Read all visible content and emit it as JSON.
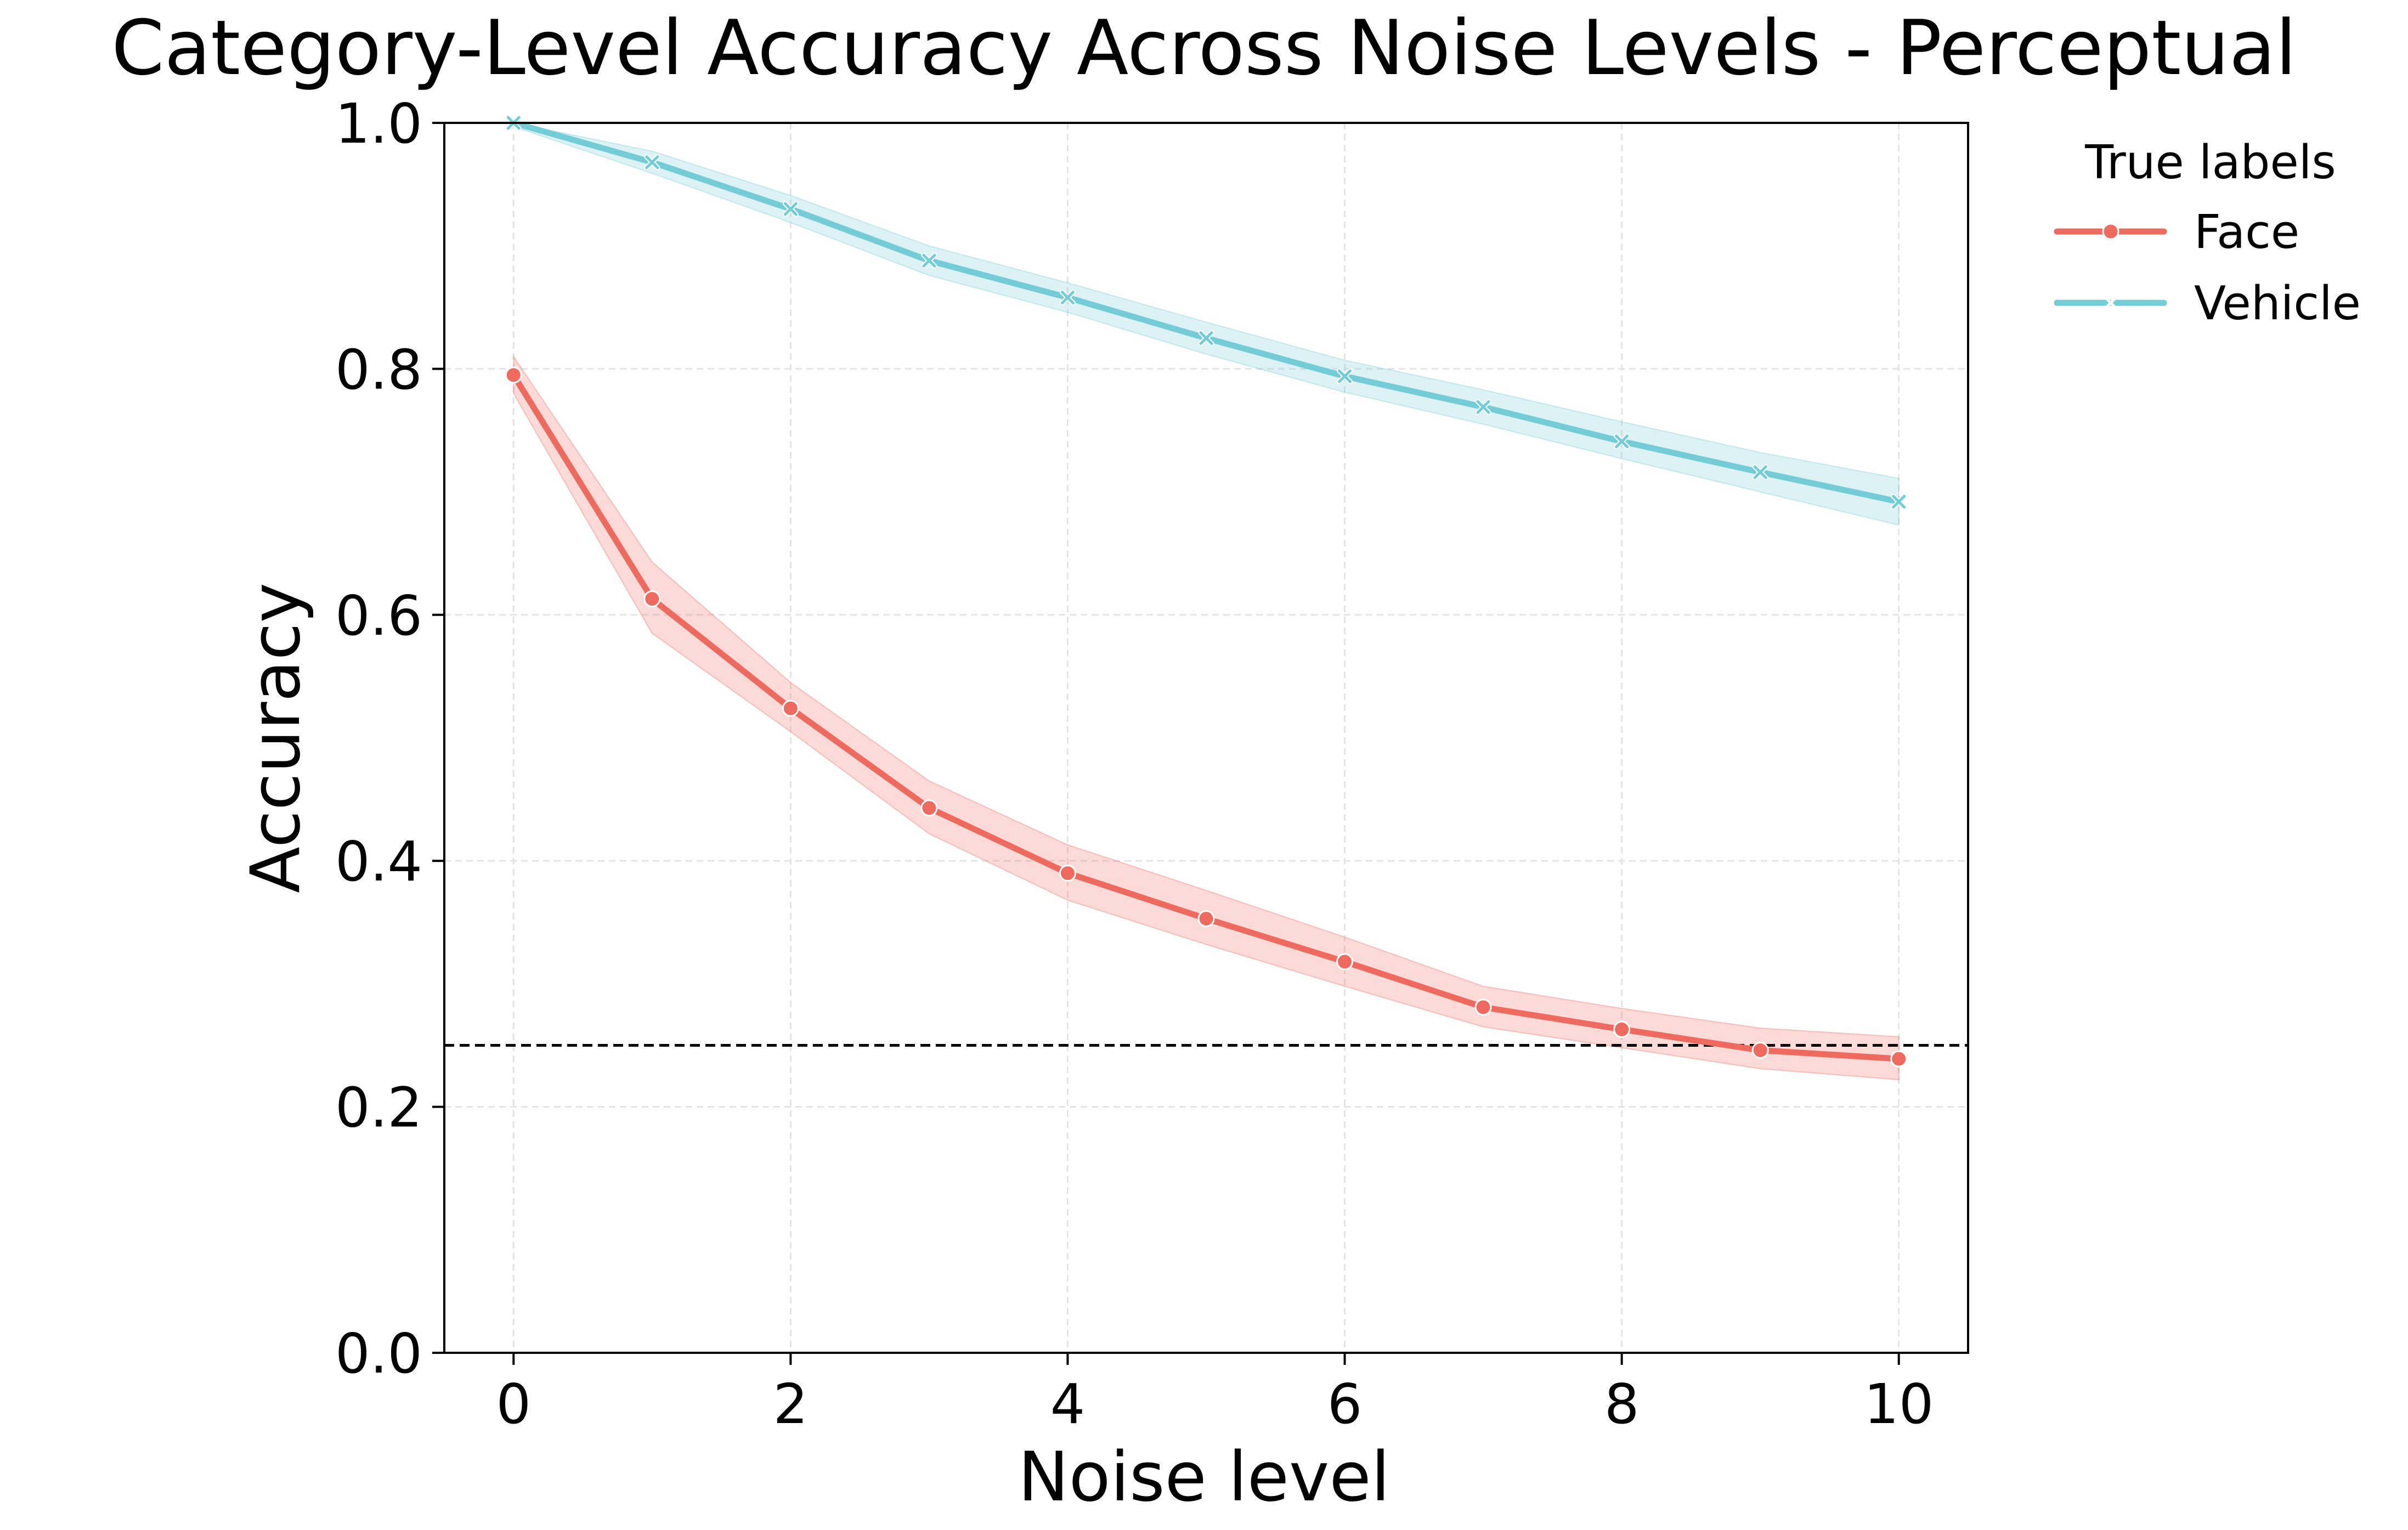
{
  "chart_data": {
    "type": "line",
    "title": "Category-Level Accuracy Across Noise Levels - Perceptual",
    "xlabel": "Noise level",
    "ylabel": "Accuracy",
    "xlim": [
      -0.5,
      10.5
    ],
    "ylim": [
      0,
      1
    ],
    "xticks": [
      0,
      2,
      4,
      6,
      8,
      10
    ],
    "xtick_labels": [
      "0",
      "2",
      "4",
      "6",
      "8",
      "10"
    ],
    "yticks": [
      0,
      0.2,
      0.4,
      0.6,
      0.8,
      1.0
    ],
    "ytick_labels": [
      "0.0",
      "0.2",
      "0.4",
      "0.6",
      "0.8",
      "1.0"
    ],
    "grid": true,
    "legend": {
      "title": "True labels",
      "placement": "outside-top-right"
    },
    "reference_line": {
      "y": 0.25,
      "style": "dashed"
    },
    "x": [
      0,
      1,
      2,
      3,
      4,
      5,
      6,
      7,
      8,
      9,
      10
    ],
    "series": [
      {
        "name": "Face",
        "color": "#ee6a5e",
        "marker": "circle",
        "values": [
          0.795,
          0.613,
          0.524,
          0.443,
          0.39,
          0.353,
          0.318,
          0.281,
          0.263,
          0.246,
          0.239
        ],
        "ci_lower": [
          0.78,
          0.585,
          0.505,
          0.422,
          0.368,
          0.332,
          0.298,
          0.265,
          0.248,
          0.231,
          0.222
        ],
        "ci_upper": [
          0.81,
          0.643,
          0.545,
          0.465,
          0.413,
          0.376,
          0.338,
          0.298,
          0.28,
          0.264,
          0.257
        ]
      },
      {
        "name": "Vehicle",
        "color": "#74ccd6",
        "marker": "x",
        "values": [
          1.0,
          0.968,
          0.93,
          0.888,
          0.858,
          0.825,
          0.794,
          0.769,
          0.741,
          0.716,
          0.692
        ],
        "ci_lower": [
          0.997,
          0.959,
          0.919,
          0.876,
          0.846,
          0.812,
          0.781,
          0.755,
          0.727,
          0.7,
          0.673
        ],
        "ci_upper": [
          1.0,
          0.977,
          0.941,
          0.9,
          0.87,
          0.838,
          0.807,
          0.783,
          0.757,
          0.732,
          0.711
        ]
      }
    ]
  }
}
